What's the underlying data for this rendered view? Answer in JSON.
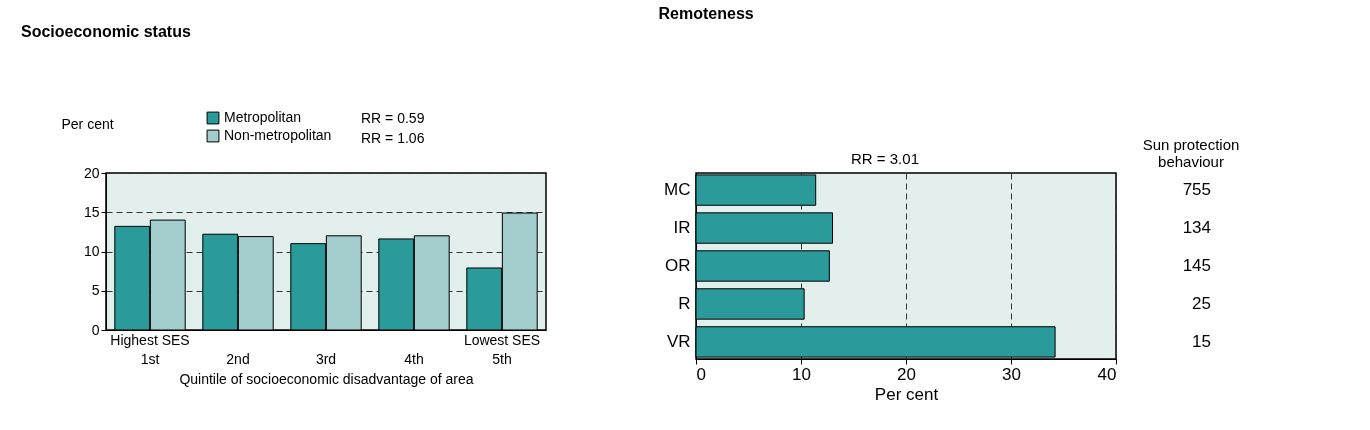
{
  "chart_data": [
    {
      "type": "bar",
      "title": "Socioeconomic status",
      "categories": [
        "1st",
        "2nd",
        "3rd",
        "4th",
        "5th"
      ],
      "xlabel": "Quintile of socioeconomic disadvantage of area",
      "ylabel": "Per cent",
      "series": [
        {
          "name": "Metropolitan",
          "color": "#2a9a9a",
          "values": [
            13.2,
            12.2,
            11.0,
            11.6,
            7.9
          ]
        },
        {
          "name": "Non-metropolitan",
          "color": "#a3cccc",
          "values": [
            14.0,
            11.9,
            12.0,
            12.0,
            14.9
          ]
        }
      ],
      "ylim": [
        0,
        20
      ],
      "yticks": [
        0,
        5,
        10,
        15,
        20
      ],
      "grid": "y",
      "legend": "top",
      "annotations": [
        "RR = 0.59",
        "RR = 1.06",
        "Highest SES",
        "Lowest SES"
      ]
    },
    {
      "type": "bar",
      "orientation": "horizontal",
      "title": "Remoteness",
      "categories": [
        "MC",
        "IR",
        "OR",
        "R",
        "VR"
      ],
      "values": [
        11.4,
        13.0,
        12.7,
        10.3,
        34.2
      ],
      "color": "#2a9a9a",
      "xlabel": "Per cent",
      "xlim": [
        0,
        40
      ],
      "xticks": [
        0,
        10,
        20,
        30,
        40
      ],
      "grid": "x",
      "annotations": [
        "RR = 3.01",
        "Sun protection behaviour",
        "755",
        "134",
        "145",
        "25",
        "15"
      ]
    }
  ]
}
